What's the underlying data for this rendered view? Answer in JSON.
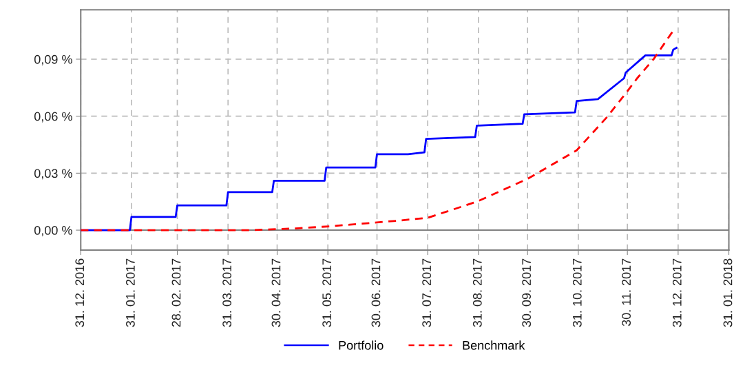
{
  "chart_data": {
    "type": "line",
    "xlim": [
      "2016-12-31",
      "2018-01-31"
    ],
    "xticks": [
      {
        "value": "2016-12-31",
        "label": "31. 12. 2016"
      },
      {
        "value": "2017-01-31",
        "label": "31. 01. 2017"
      },
      {
        "value": "2017-02-28",
        "label": "28. 02. 2017"
      },
      {
        "value": "2017-03-31",
        "label": "31. 03. 2017"
      },
      {
        "value": "2017-04-30",
        "label": "30. 04. 2017"
      },
      {
        "value": "2017-05-31",
        "label": "31. 05. 2017"
      },
      {
        "value": "2017-06-30",
        "label": "30. 06. 2017"
      },
      {
        "value": "2017-07-31",
        "label": "31. 07. 2017"
      },
      {
        "value": "2017-08-31",
        "label": "31. 08. 2017"
      },
      {
        "value": "2017-09-30",
        "label": "30. 09. 2017"
      },
      {
        "value": "2017-10-31",
        "label": "31. 10. 2017"
      },
      {
        "value": "2017-11-30",
        "label": "30. 11. 2017"
      },
      {
        "value": "2017-12-31",
        "label": "31. 12. 2017"
      },
      {
        "value": "2018-01-31",
        "label": "31. 01. 2018"
      }
    ],
    "ylim": [
      -0.0105,
      0.116
    ],
    "yticks": [
      {
        "value": 0,
        "label": "0,00 %"
      },
      {
        "value": 0.03,
        "label": "0,03 %"
      },
      {
        "value": 0.06,
        "label": "0,06 %"
      },
      {
        "value": 0.09,
        "label": "0,09 %"
      }
    ],
    "grid": true,
    "legend": "bottom",
    "ref_lines": [
      {
        "axis": "y",
        "value": 0,
        "color": "#808080"
      }
    ],
    "series": [
      {
        "name": "Portfolio",
        "color": "#0000ff",
        "line_style": "solid",
        "x": [
          "2016-12-31",
          "2017-01-30",
          "2017-01-31",
          "2017-02-27",
          "2017-02-28",
          "2017-03-30",
          "2017-03-31",
          "2017-04-27",
          "2017-04-28",
          "2017-05-29",
          "2017-05-30",
          "2017-06-29",
          "2017-06-30",
          "2017-07-19",
          "2017-07-29",
          "2017-07-30",
          "2017-08-29",
          "2017-08-30",
          "2017-09-27",
          "2017-09-28",
          "2017-10-29",
          "2017-10-30",
          "2017-11-12",
          "2017-11-28",
          "2017-11-29",
          "2017-12-11",
          "2017-12-27",
          "2017-12-28",
          "2017-12-30"
        ],
        "values": [
          0,
          0,
          0.007,
          0.007,
          0.013,
          0.013,
          0.02,
          0.02,
          0.026,
          0.026,
          0.033,
          0.033,
          0.04,
          0.04,
          0.041,
          0.048,
          0.049,
          0.055,
          0.056,
          0.061,
          0.062,
          0.068,
          0.069,
          0.08,
          0.083,
          0.092,
          0.092,
          0.095,
          0.096
        ]
      },
      {
        "name": "Benchmark",
        "color": "#ff0000",
        "line_style": "dashed",
        "x": [
          "2016-12-31",
          "2017-04-15",
          "2017-05-13",
          "2017-06-01",
          "2017-07-13",
          "2017-07-31",
          "2017-08-30",
          "2017-09-30",
          "2017-10-30",
          "2017-11-17",
          "2017-11-29",
          "2017-12-06",
          "2017-12-16",
          "2017-12-28"
        ],
        "values": [
          0,
          0,
          0.001,
          0.002,
          0.005,
          0.0065,
          0.015,
          0.027,
          0.042,
          0.059,
          0.072,
          0.08,
          0.09,
          0.105
        ]
      }
    ]
  }
}
